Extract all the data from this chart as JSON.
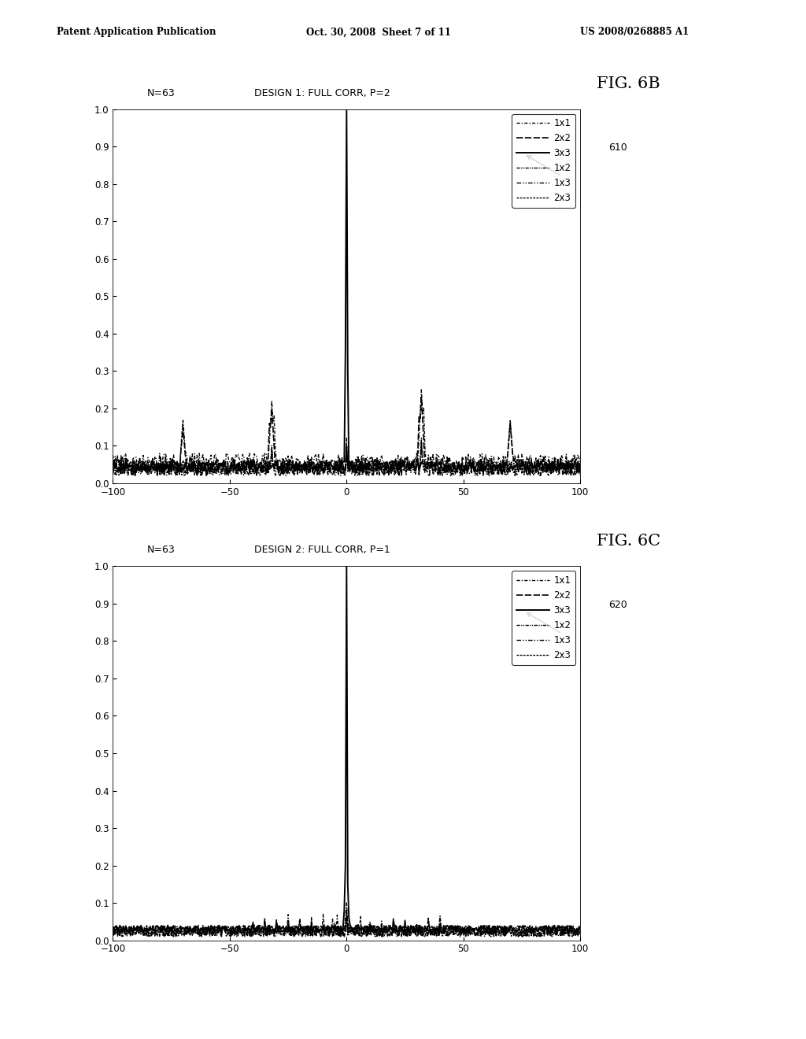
{
  "fig6b_title_left": "N=63",
  "fig6b_title_right": "DESIGN 1: FULL CORR, P=2",
  "fig6b_label": "FIG. 6B",
  "fig6b_annotation": "610",
  "fig6c_title_left": "N=63",
  "fig6c_title_right": "DESIGN 2: FULL CORR, P=1",
  "fig6c_label": "FIG. 6C",
  "fig6c_annotation": "620",
  "header_left": "Patent Application Publication",
  "header_center": "Oct. 30, 2008  Sheet 7 of 11",
  "header_right": "US 2008/0268885 A1",
  "xlim": [
    -100,
    100
  ],
  "ylim": [
    0,
    1.0
  ],
  "yticks": [
    0,
    0.1,
    0.2,
    0.3,
    0.4,
    0.5,
    0.6,
    0.7,
    0.8,
    0.9,
    1.0
  ],
  "xticks": [
    -100,
    -50,
    0,
    50,
    100
  ],
  "legend_labels": [
    "1x1",
    "2x2",
    "3x3",
    "1x2",
    "1x3",
    "2x3"
  ],
  "background_color": "#ffffff",
  "seed_6b": 42,
  "seed_6c": 123
}
